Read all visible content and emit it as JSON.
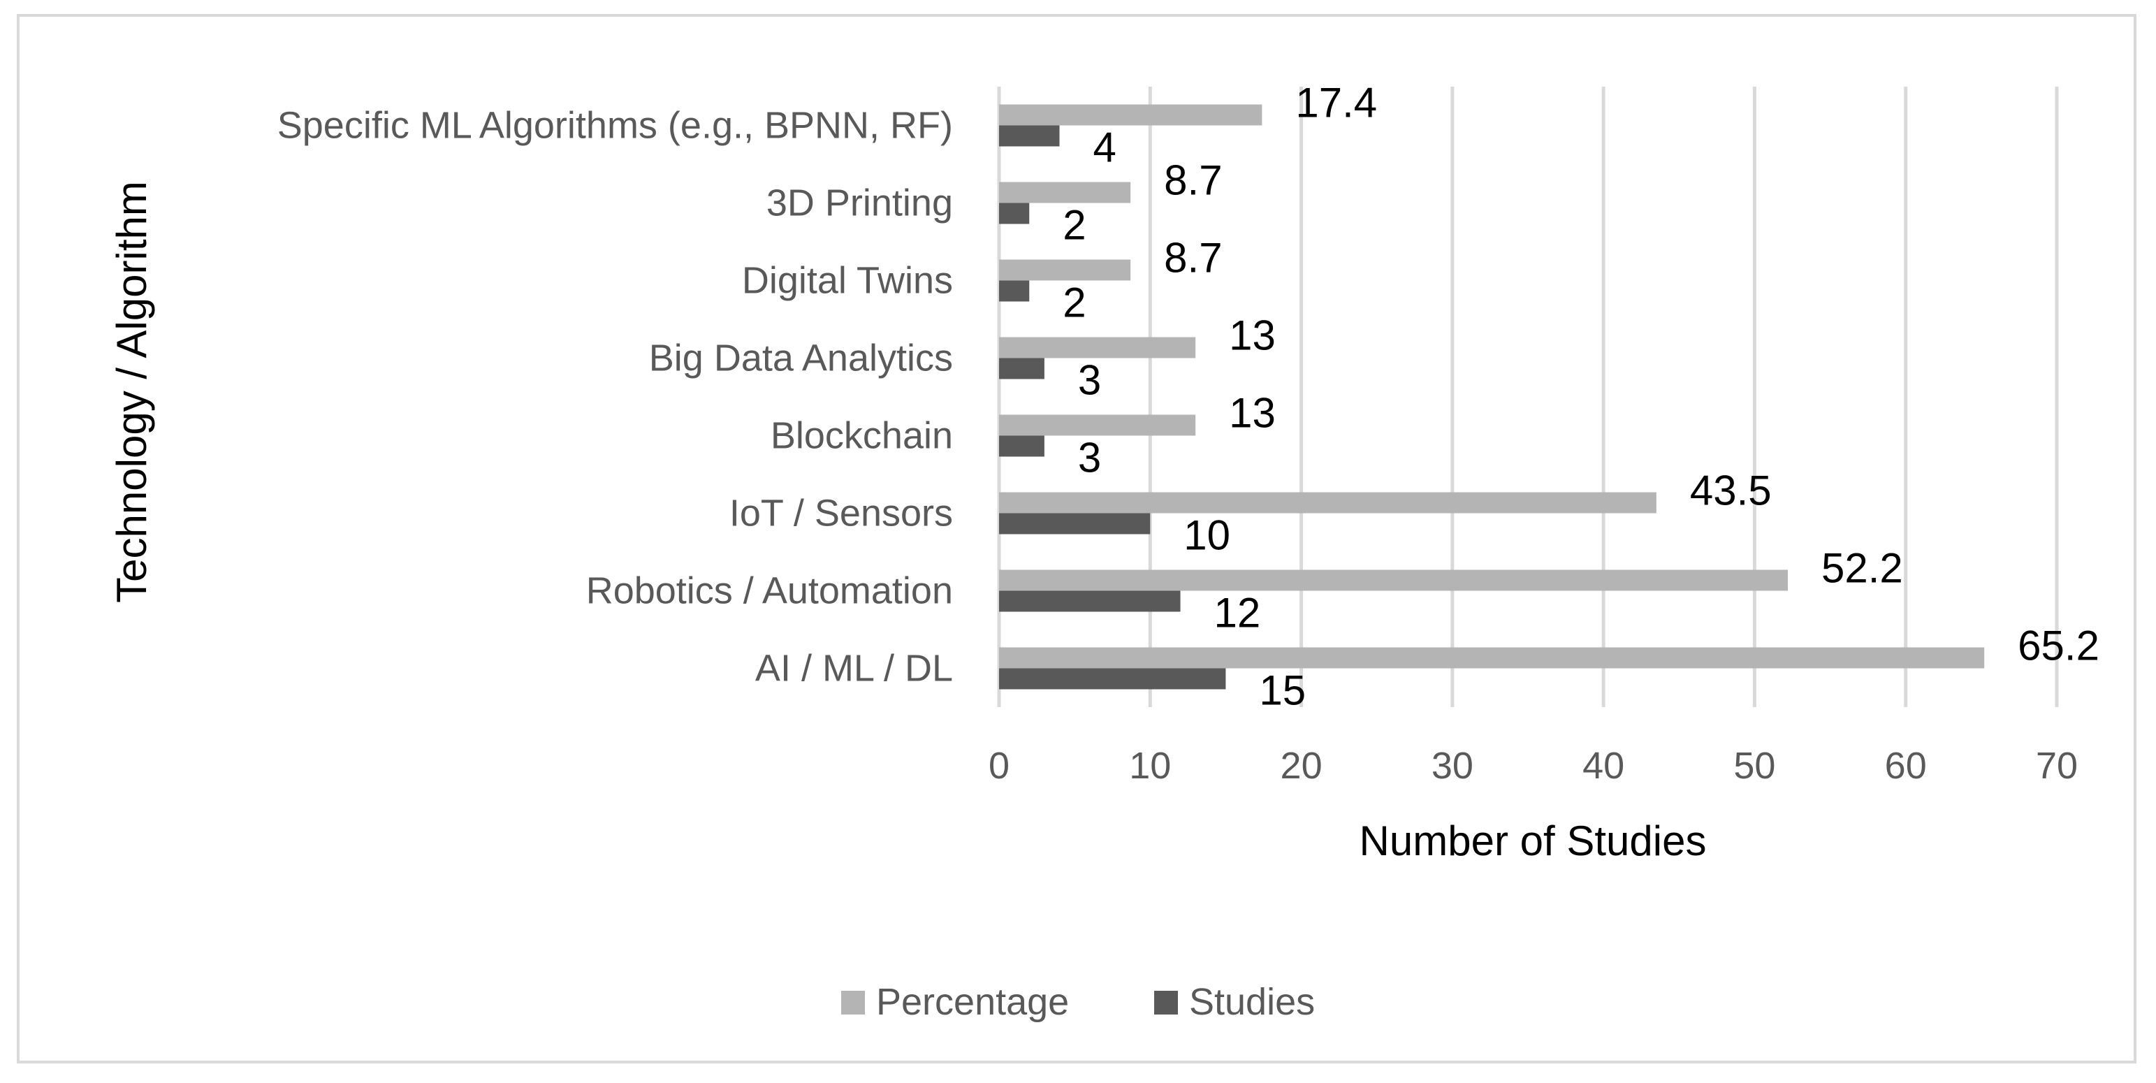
{
  "chart_data": {
    "type": "bar",
    "orientation": "horizontal",
    "title": "",
    "xlabel": "Number of Studies",
    "ylabel": "Technology / Algorithm",
    "xlim": [
      0,
      70
    ],
    "x_ticks": [
      0,
      10,
      20,
      30,
      40,
      50,
      60,
      70
    ],
    "grid": "vertical",
    "legend_position": "bottom",
    "categories": [
      "AI / ML / DL",
      "Robotics / Automation",
      "IoT / Sensors",
      "Blockchain",
      "Big Data Analytics",
      "Digital Twins",
      "3D Printing",
      "Specific ML Algorithms (e.g., BPNN, RF)"
    ],
    "series": [
      {
        "name": "Percentage",
        "color": "#b4b4b4",
        "values": [
          65.2,
          52.2,
          43.5,
          13,
          13,
          8.7,
          8.7,
          17.4
        ],
        "labels": [
          "65.2",
          "52.2",
          "43.5",
          "13",
          "13",
          "8.7",
          "8.7",
          "17.4"
        ]
      },
      {
        "name": "Studies",
        "color": "#595959",
        "values": [
          15,
          12,
          10,
          3,
          3,
          2,
          2,
          4
        ],
        "labels": [
          "15",
          "12",
          "10",
          "3",
          "3",
          "2",
          "2",
          "4"
        ]
      }
    ]
  }
}
